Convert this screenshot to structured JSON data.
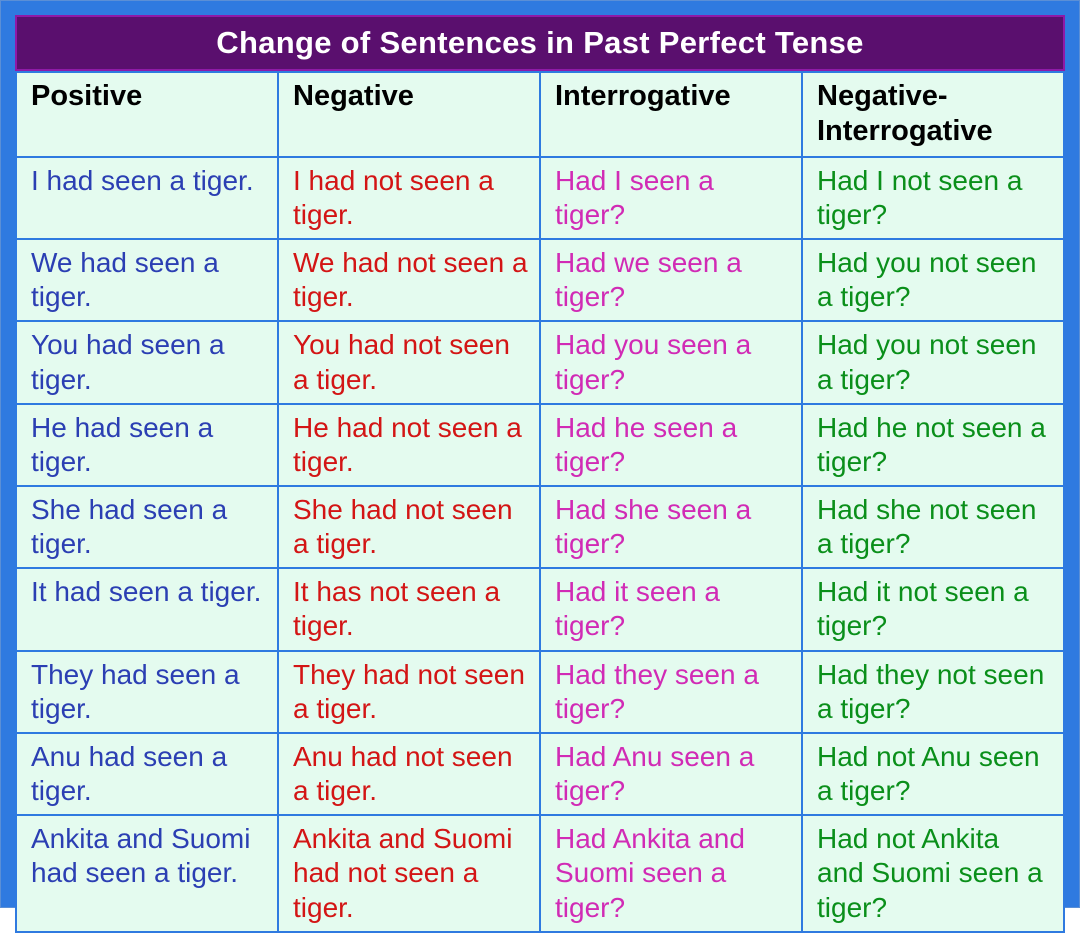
{
  "title": "Change of Sentences in Past Perfect Tense",
  "colors": {
    "outer_bg": "#2f7ae0",
    "title_bg": "#5a0f6e",
    "title_border": "#8f1aa7",
    "title_text": "#ffffff",
    "cell_bg": "#e4fbef",
    "cell_border": "#2f7ae0",
    "header_text": "#000000",
    "positive_text": "#2b3fb3",
    "negative_text": "#d31515",
    "interrogative_text": "#d12bb5",
    "neg_interrogative_text": "#0a8f1a"
  },
  "typography": {
    "font_family": "Arial",
    "title_pt": 31,
    "header_pt": 29,
    "body_pt": 28,
    "title_weight": "bold",
    "header_weight": "bold",
    "body_weight": "normal"
  },
  "table": {
    "type": "table",
    "columns": [
      "Positive",
      "Negative",
      "Interrogative",
      "Negative-Interrogative"
    ],
    "rows": [
      {
        "positive": "I had seen a tiger.",
        "negative": "I had not seen a tiger.",
        "interrogative": "Had I seen a tiger?",
        "neg_interrogative": "Had I not seen a tiger?"
      },
      {
        "positive": "We had seen a tiger.",
        "negative": "We had not seen a tiger.",
        "interrogative": "Had we seen a tiger?",
        "neg_interrogative": "Had you  not seen a tiger?"
      },
      {
        "positive": "You had seen a tiger.",
        "negative": "You had not seen a tiger.",
        "interrogative": "Had you seen a tiger?",
        "neg_interrogative": "Had you not seen a tiger?"
      },
      {
        "positive": "He had seen a tiger.",
        "negative": "He had not seen a tiger.",
        "interrogative": "Had he seen a tiger?",
        "neg_interrogative": "Had he not seen a tiger?"
      },
      {
        "positive": "She had seen a tiger.",
        "negative": "She had not seen a tiger.",
        "interrogative": "Had she seen a tiger?",
        "neg_interrogative": "Had she not seen a tiger?"
      },
      {
        "positive": "It had seen a tiger.",
        "negative": "It has not seen a tiger.",
        "interrogative": "Had it seen a tiger?",
        "neg_interrogative": "Had it not seen a tiger?"
      },
      {
        "positive": "They had seen a tiger.",
        "negative": "They had not seen a tiger.",
        "interrogative": "Had they seen a tiger?",
        "neg_interrogative": "Had they not seen a tiger?"
      },
      {
        "positive": "Anu had seen a tiger.",
        "negative": "Anu had not seen a tiger.",
        "interrogative": "Had Anu seen a tiger?",
        "neg_interrogative": "Had not Anu seen a tiger?"
      },
      {
        "positive": "Ankita and Suomi had seen a tiger.",
        "negative": "Ankita and Suomi had not seen a tiger.",
        "interrogative": "Had Ankita and Suomi seen a tiger?",
        "neg_interrogative": "Had not Ankita and Suomi seen a tiger?"
      }
    ]
  }
}
